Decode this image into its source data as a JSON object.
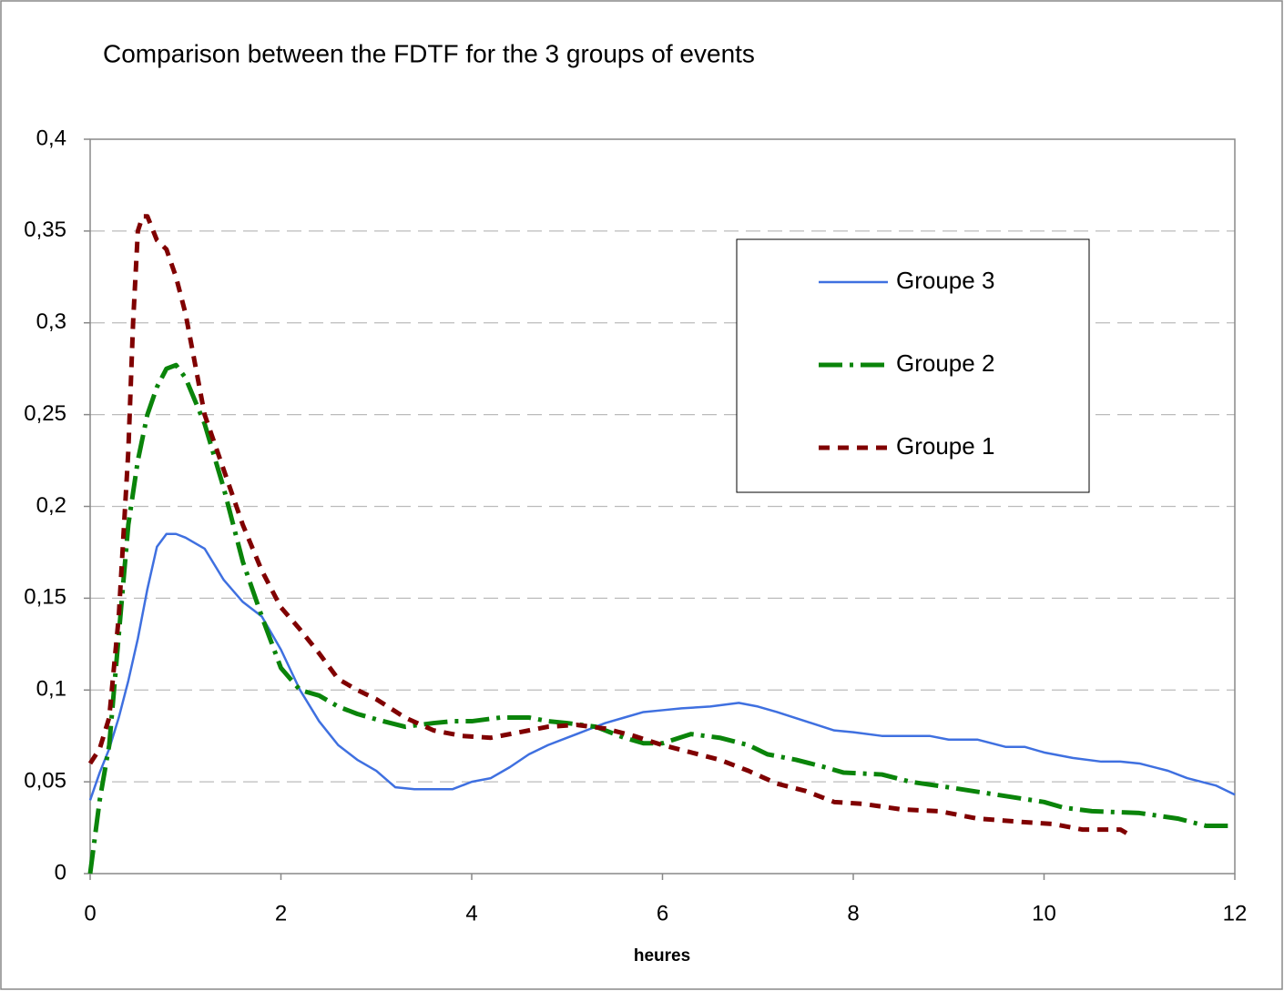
{
  "chart_data": {
    "type": "line",
    "title": "Comparison between the FDTF for the 3 groups of events",
    "x_label": "heures",
    "xlim": [
      0,
      12
    ],
    "xticks": [
      0,
      2,
      4,
      6,
      8,
      10,
      12
    ],
    "ylim": [
      0,
      0.4
    ],
    "yticks": [
      0,
      {
        "value": 0.05,
        "label": "0,05"
      },
      {
        "value": 0.1,
        "label": "0,1"
      },
      {
        "value": 0.15,
        "label": "0,15"
      },
      {
        "value": 0.2,
        "label": "0,2"
      },
      {
        "value": 0.25,
        "label": "0,25"
      },
      {
        "value": 0.3,
        "label": "0,3"
      },
      {
        "value": 0.35,
        "label": "0,35"
      },
      {
        "value": 0.4,
        "label": "0,4"
      }
    ],
    "grid": true,
    "legend": "upper right",
    "series": [
      {
        "name": "Groupe 3",
        "color": "#3f70e0",
        "line_style": "solid",
        "x": [
          0,
          0.1,
          0.2,
          0.3,
          0.4,
          0.5,
          0.6,
          0.7,
          0.8,
          0.9,
          1.0,
          1.2,
          1.4,
          1.6,
          1.8,
          2.0,
          2.2,
          2.4,
          2.6,
          2.8,
          3.0,
          3.2,
          3.4,
          3.6,
          3.8,
          4.0,
          4.2,
          4.4,
          4.6,
          4.8,
          5.0,
          5.2,
          5.4,
          5.6,
          5.8,
          6.0,
          6.2,
          6.5,
          6.8,
          7.0,
          7.2,
          7.5,
          7.8,
          8.0,
          8.3,
          8.6,
          8.8,
          9.0,
          9.3,
          9.6,
          9.8,
          10.0,
          10.3,
          10.6,
          10.8,
          11.0,
          11.3,
          11.5,
          11.8,
          12.0
        ],
        "values": [
          0.04,
          0.055,
          0.068,
          0.085,
          0.105,
          0.128,
          0.155,
          0.178,
          0.185,
          0.185,
          0.183,
          0.177,
          0.16,
          0.148,
          0.14,
          0.122,
          0.1,
          0.083,
          0.07,
          0.062,
          0.056,
          0.047,
          0.046,
          0.046,
          0.046,
          0.05,
          0.052,
          0.058,
          0.065,
          0.07,
          0.074,
          0.078,
          0.082,
          0.085,
          0.088,
          0.089,
          0.09,
          0.091,
          0.093,
          0.091,
          0.088,
          0.083,
          0.078,
          0.077,
          0.075,
          0.075,
          0.075,
          0.073,
          0.073,
          0.069,
          0.069,
          0.066,
          0.063,
          0.061,
          0.061,
          0.06,
          0.056,
          0.052,
          0.048,
          0.043
        ]
      },
      {
        "name": "Groupe 2",
        "color": "#0a840a",
        "line_style": "dashed",
        "x": [
          0,
          0.1,
          0.2,
          0.3,
          0.4,
          0.5,
          0.6,
          0.7,
          0.8,
          0.9,
          1.0,
          1.2,
          1.4,
          1.6,
          1.8,
          2.0,
          2.2,
          2.4,
          2.6,
          2.8,
          3.0,
          3.3,
          3.6,
          3.8,
          4.0,
          4.3,
          4.6,
          4.8,
          5.0,
          5.3,
          5.6,
          5.8,
          6.0,
          6.3,
          6.6,
          6.9,
          7.1,
          7.4,
          7.7,
          7.9,
          8.3,
          8.6,
          9.0,
          9.5,
          10.0,
          10.2,
          10.5,
          11.0,
          11.4,
          11.7,
          12.0
        ],
        "values": [
          0,
          0.04,
          0.07,
          0.13,
          0.19,
          0.225,
          0.25,
          0.265,
          0.275,
          0.277,
          0.27,
          0.245,
          0.21,
          0.17,
          0.14,
          0.112,
          0.1,
          0.097,
          0.091,
          0.087,
          0.084,
          0.08,
          0.082,
          0.083,
          0.083,
          0.085,
          0.085,
          0.083,
          0.082,
          0.08,
          0.074,
          0.071,
          0.071,
          0.076,
          0.074,
          0.07,
          0.065,
          0.062,
          0.058,
          0.055,
          0.054,
          0.05,
          0.047,
          0.043,
          0.039,
          0.036,
          0.034,
          0.033,
          0.03,
          0.026,
          0.026
        ]
      },
      {
        "name": "Groupe 1",
        "color": "#800000",
        "line_style": "dotted",
        "x": [
          0,
          0.1,
          0.2,
          0.3,
          0.4,
          0.45,
          0.5,
          0.55,
          0.6,
          0.7,
          0.8,
          0.9,
          1.0,
          1.2,
          1.4,
          1.6,
          1.8,
          2.0,
          2.2,
          2.4,
          2.6,
          2.8,
          3.0,
          3.3,
          3.6,
          3.9,
          4.2,
          4.5,
          4.8,
          5.1,
          5.4,
          5.7,
          6.0,
          6.3,
          6.6,
          6.9,
          7.2,
          7.5,
          7.8,
          8.1,
          8.5,
          8.9,
          9.3,
          9.8,
          10.1,
          10.4,
          10.8,
          10.9
        ],
        "values": [
          0.06,
          0.068,
          0.085,
          0.14,
          0.23,
          0.3,
          0.35,
          0.358,
          0.358,
          0.345,
          0.34,
          0.325,
          0.305,
          0.25,
          0.22,
          0.19,
          0.165,
          0.145,
          0.133,
          0.12,
          0.106,
          0.1,
          0.095,
          0.085,
          0.078,
          0.075,
          0.074,
          0.077,
          0.08,
          0.081,
          0.079,
          0.075,
          0.07,
          0.066,
          0.062,
          0.056,
          0.049,
          0.045,
          0.039,
          0.038,
          0.035,
          0.034,
          0.03,
          0.028,
          0.027,
          0.024,
          0.024,
          0.021
        ]
      }
    ]
  }
}
